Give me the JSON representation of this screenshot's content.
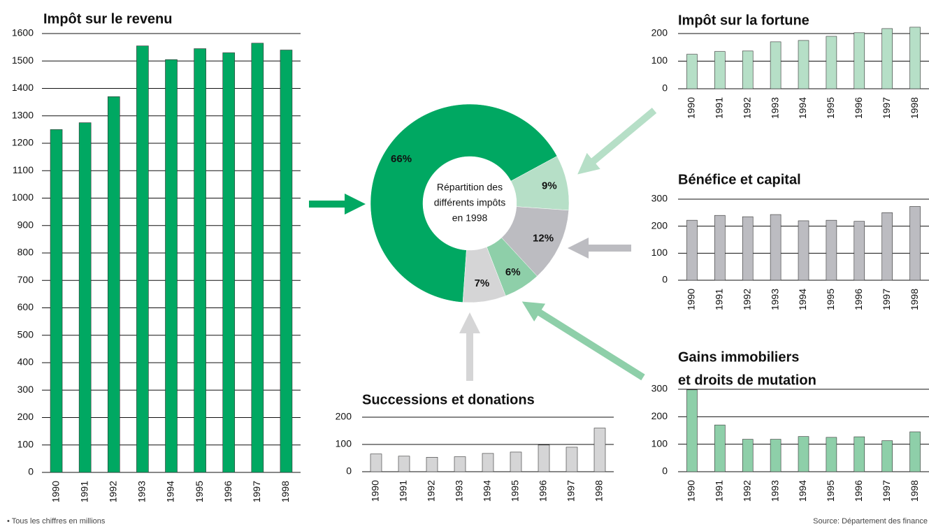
{
  "chart_data": [
    {
      "type": "bar",
      "title": "Impôt sur le revenu",
      "categories": [
        "1990",
        "1991",
        "1992",
        "1993",
        "1994",
        "1995",
        "1996",
        "1997",
        "1998"
      ],
      "values": [
        1250,
        1275,
        1370,
        1555,
        1505,
        1545,
        1530,
        1565,
        1540
      ],
      "color": "#00a862",
      "ylim": [
        0,
        1600
      ],
      "yticks": [
        0,
        100,
        200,
        300,
        400,
        500,
        600,
        700,
        800,
        900,
        1000,
        1100,
        1200,
        1300,
        1400,
        1500,
        1600
      ],
      "grid": true
    },
    {
      "type": "bar",
      "title": "Impôt sur la fortune",
      "categories": [
        "1990",
        "1991",
        "1992",
        "1993",
        "1994",
        "1995",
        "1996",
        "1997",
        "1998"
      ],
      "values": [
        125,
        135,
        137,
        170,
        175,
        190,
        203,
        218,
        223
      ],
      "color": "#b6dfc7",
      "ylim": [
        0,
        200
      ],
      "yticks": [
        0,
        100,
        200
      ],
      "grid": true
    },
    {
      "type": "bar",
      "title": "Bénéfice et capital",
      "categories": [
        "1990",
        "1991",
        "1992",
        "1993",
        "1994",
        "1995",
        "1996",
        "1997",
        "1998"
      ],
      "values": [
        222,
        240,
        235,
        243,
        220,
        222,
        218,
        250,
        273
      ],
      "color": "#bcbcc1",
      "ylim": [
        0,
        300
      ],
      "yticks": [
        0,
        100,
        200,
        300
      ],
      "grid": true
    },
    {
      "type": "bar",
      "title": "Successions et donations",
      "categories": [
        "1990",
        "1991",
        "1992",
        "1993",
        "1994",
        "1995",
        "1996",
        "1997",
        "1998"
      ],
      "values": [
        65,
        57,
        53,
        55,
        67,
        72,
        98,
        90,
        160
      ],
      "color": "#d5d5d6",
      "ylim": [
        0,
        200
      ],
      "yticks": [
        0,
        100,
        200
      ],
      "grid": true
    },
    {
      "type": "bar",
      "title": [
        "Gains immobiliers",
        "et droits de mutation"
      ],
      "categories": [
        "1990",
        "1991",
        "1992",
        "1993",
        "1994",
        "1995",
        "1996",
        "1997",
        "1998"
      ],
      "values": [
        298,
        170,
        118,
        118,
        128,
        125,
        127,
        113,
        145
      ],
      "color": "#8ecfa9",
      "ylim": [
        0,
        300
      ],
      "yticks": [
        0,
        100,
        200,
        300
      ],
      "grid": true
    },
    {
      "type": "pie",
      "center_text": [
        "Répartition des",
        "différents impôts",
        "en 1998"
      ],
      "values": [
        66,
        9,
        12,
        6,
        7
      ],
      "value_labels": [
        "66%",
        "9%",
        "12%",
        "6%",
        "7%"
      ],
      "colors": [
        "#00a862",
        "#b6dfc7",
        "#bcbcc1",
        "#8ecfa9",
        "#d5d5d6"
      ]
    }
  ],
  "notes": {
    "footnote": "• Tous les chiffres en millions",
    "source": "Source: Département des finance"
  }
}
